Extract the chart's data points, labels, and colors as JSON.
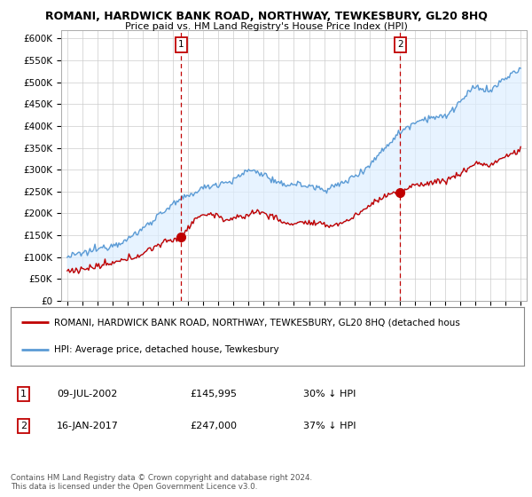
{
  "title": "ROMANI, HARDWICK BANK ROAD, NORTHWAY, TEWKESBURY, GL20 8HQ",
  "subtitle": "Price paid vs. HM Land Registry's House Price Index (HPI)",
  "ylabel_ticks": [
    "£0",
    "£50K",
    "£100K",
    "£150K",
    "£200K",
    "£250K",
    "£300K",
    "£350K",
    "£400K",
    "£450K",
    "£500K",
    "£550K",
    "£600K"
  ],
  "ytick_values": [
    0,
    50000,
    100000,
    150000,
    200000,
    250000,
    300000,
    350000,
    400000,
    450000,
    500000,
    550000,
    600000
  ],
  "ylim": [
    0,
    620000
  ],
  "xlim_start": 1994.6,
  "xlim_end": 2025.4,
  "hpi_color": "#5b9bd5",
  "price_color": "#c00000",
  "fill_color": "#ddeeff",
  "marker1_date": 2002.54,
  "marker1_price": 145995,
  "marker1_label": "1",
  "marker2_date": 2017.04,
  "marker2_price": 247000,
  "marker2_label": "2",
  "legend_line1": "ROMANI, HARDWICK BANK ROAD, NORTHWAY, TEWKESBURY, GL20 8HQ (detached hous",
  "legend_line2": "HPI: Average price, detached house, Tewkesbury",
  "annotation1_date": "09-JUL-2002",
  "annotation1_price": "£145,995",
  "annotation1_pct": "30% ↓ HPI",
  "annotation2_date": "16-JAN-2017",
  "annotation2_price": "£247,000",
  "annotation2_pct": "37% ↓ HPI",
  "footer": "Contains HM Land Registry data © Crown copyright and database right 2024.\nThis data is licensed under the Open Government Licence v3.0.",
  "bg_color": "#ffffff",
  "grid_color": "#cccccc",
  "hpi_anchors_x": [
    1995.0,
    1996.0,
    1997.0,
    1998.0,
    1999.0,
    2000.0,
    2001.0,
    2002.0,
    2003.0,
    2004.0,
    2005.0,
    2006.0,
    2007.0,
    2008.0,
    2009.0,
    2010.0,
    2011.0,
    2012.0,
    2013.0,
    2014.0,
    2015.0,
    2016.0,
    2017.0,
    2018.0,
    2019.0,
    2020.0,
    2021.0,
    2022.0,
    2023.0,
    2024.0,
    2025.0
  ],
  "hpi_anchors_y": [
    100000,
    108000,
    118000,
    128000,
    140000,
    165000,
    195000,
    220000,
    240000,
    258000,
    268000,
    275000,
    300000,
    290000,
    265000,
    268000,
    262000,
    255000,
    265000,
    285000,
    310000,
    350000,
    385000,
    410000,
    420000,
    420000,
    455000,
    490000,
    480000,
    510000,
    530000
  ],
  "price_anchors_x": [
    1995.0,
    1996.0,
    1997.0,
    1998.0,
    1999.0,
    2000.0,
    2001.0,
    2002.54,
    2003.5,
    2004.5,
    2005.5,
    2006.5,
    2007.5,
    2008.5,
    2009.5,
    2010.5,
    2011.5,
    2012.5,
    2013.5,
    2014.5,
    2015.5,
    2016.5,
    2017.04,
    2018.0,
    2019.0,
    2020.0,
    2021.0,
    2022.0,
    2023.0,
    2024.0,
    2025.0
  ],
  "price_anchors_y": [
    68000,
    72000,
    78000,
    85000,
    95000,
    108000,
    128000,
    145995,
    190000,
    200000,
    185000,
    190000,
    205000,
    195000,
    175000,
    180000,
    175000,
    172000,
    182000,
    205000,
    230000,
    248000,
    247000,
    265000,
    270000,
    275000,
    290000,
    315000,
    310000,
    330000,
    345000
  ]
}
